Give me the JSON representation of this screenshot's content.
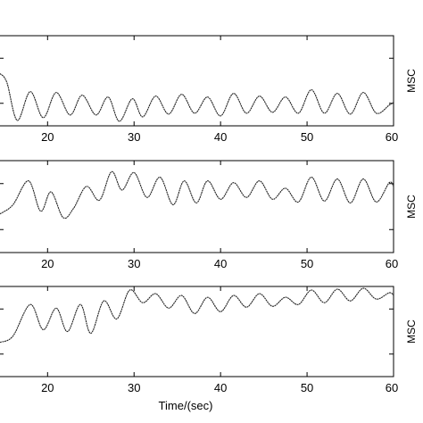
{
  "chart_data": [
    {
      "type": "line",
      "ylabel": "MSC",
      "xlim": [
        14.5,
        60
      ],
      "ylim": [
        0,
        1
      ],
      "xticks": [
        "20",
        "30",
        "40",
        "50",
        "60"
      ],
      "series": [
        {
          "x": [
            14.5,
            15.3,
            16.5,
            18.0,
            19.5,
            21.0,
            22.6,
            24.0,
            25.6,
            27.0,
            28.3,
            29.8,
            31.0,
            32.5,
            34.0,
            35.5,
            37.0,
            38.5,
            40.0,
            41.5,
            43.0,
            44.5,
            46.0,
            47.5,
            49.0,
            50.5,
            52.0,
            53.5,
            55.0,
            56.5,
            58.0,
            59.5,
            60.0
          ],
          "y": [
            0.58,
            0.48,
            0.06,
            0.38,
            0.09,
            0.37,
            0.12,
            0.34,
            0.12,
            0.32,
            0.05,
            0.3,
            0.1,
            0.33,
            0.13,
            0.35,
            0.14,
            0.32,
            0.11,
            0.36,
            0.14,
            0.33,
            0.15,
            0.32,
            0.14,
            0.4,
            0.14,
            0.36,
            0.13,
            0.37,
            0.14,
            0.23,
            0.26
          ]
        }
      ]
    },
    {
      "type": "line",
      "ylabel": "MSC",
      "xlim": [
        14.5,
        60
      ],
      "ylim": [
        0,
        1
      ],
      "xticks": [
        "20",
        "30",
        "40",
        "50",
        "60"
      ],
      "series": [
        {
          "x": [
            14.5,
            16.0,
            17.8,
            19.2,
            20.4,
            21.8,
            23.0,
            24.5,
            26.0,
            27.4,
            28.6,
            30.0,
            31.5,
            33.0,
            34.5,
            35.8,
            37.2,
            38.5,
            40.0,
            41.5,
            43.0,
            44.5,
            46.0,
            47.5,
            49.0,
            50.5,
            52.0,
            53.5,
            55.0,
            56.5,
            58.0,
            59.5,
            60.0
          ],
          "y": [
            0.42,
            0.52,
            0.78,
            0.45,
            0.66,
            0.38,
            0.48,
            0.72,
            0.57,
            0.88,
            0.68,
            0.87,
            0.6,
            0.82,
            0.52,
            0.78,
            0.54,
            0.78,
            0.58,
            0.76,
            0.6,
            0.78,
            0.58,
            0.7,
            0.55,
            0.82,
            0.56,
            0.8,
            0.54,
            0.8,
            0.55,
            0.76,
            0.72
          ]
        }
      ]
    },
    {
      "type": "line",
      "ylabel": "MSC",
      "xlim": [
        14.5,
        60
      ],
      "ylim": [
        0,
        1
      ],
      "xticks": [
        "20",
        "30",
        "40",
        "50",
        "60"
      ],
      "series": [
        {
          "x": [
            14.5,
            16.0,
            18.0,
            19.5,
            21.0,
            22.3,
            23.8,
            25.0,
            26.5,
            28.0,
            29.5,
            31.0,
            32.5,
            34.0,
            35.5,
            37.0,
            38.5,
            40.0,
            41.5,
            43.0,
            44.5,
            46.0,
            47.5,
            49.0,
            50.5,
            52.0,
            53.5,
            55.0,
            56.5,
            58.0,
            59.5,
            60.0
          ],
          "y": [
            0.38,
            0.45,
            0.8,
            0.52,
            0.76,
            0.5,
            0.8,
            0.48,
            0.84,
            0.64,
            0.96,
            0.82,
            0.92,
            0.76,
            0.9,
            0.7,
            0.88,
            0.72,
            0.9,
            0.77,
            0.92,
            0.78,
            0.88,
            0.8,
            0.96,
            0.82,
            0.97,
            0.84,
            0.98,
            0.86,
            0.93,
            0.9
          ]
        }
      ]
    }
  ],
  "shared": {
    "xlabel": "Time/(sec)"
  }
}
